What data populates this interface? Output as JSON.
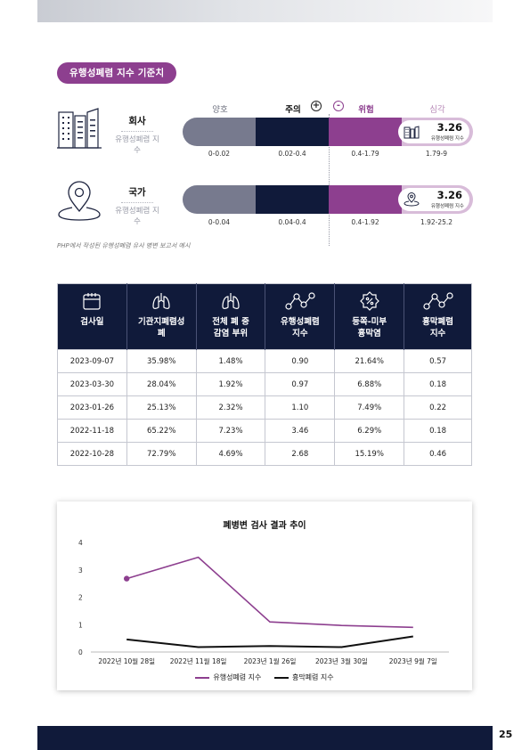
{
  "header": {
    "section_title": "유행성폐렴 지수 기준치"
  },
  "levels": {
    "good": "양호",
    "caution": "주의",
    "danger": "위험",
    "severe": "심각",
    "plus": "+",
    "minus": "-"
  },
  "rows": [
    {
      "name": "회사",
      "sub": "유행성폐렴 지수",
      "ranges": [
        "0-0.02",
        "0.02-0.4",
        "0.4-1.79",
        "1.79-9"
      ],
      "badge_value": "3.26",
      "badge_label": "유행성폐렴 지수",
      "badge_icon": "building-icon",
      "row_icon": "office-buildings-icon"
    },
    {
      "name": "국가",
      "sub": "유행성폐렴 지수",
      "ranges": [
        "0-0.04",
        "0.04-0.4",
        "0.4-1.92",
        "1.92-25.2"
      ],
      "badge_value": "3.26",
      "badge_label": "유행성폐렴 지수",
      "badge_icon": "location-pin-icon",
      "row_icon": "map-pin-icon"
    }
  ],
  "note": "PHP에서 작성된 유행성폐렴 유사 병변 보고서 예시",
  "table": {
    "headers": [
      {
        "line1": "검사일",
        "line2": "",
        "icon": "calendar-icon"
      },
      {
        "line1": "기관지폐렴성",
        "line2": "폐",
        "icon": "lungs-icon"
      },
      {
        "line1": "전체 폐 중",
        "line2": "감염 부위",
        "icon": "lungs-icon"
      },
      {
        "line1": "유행성폐렴",
        "line2": "지수",
        "icon": "line-graph-icon"
      },
      {
        "line1": "등쪽-미부",
        "line2": "흉막염",
        "icon": "percent-badge-icon"
      },
      {
        "line1": "흉막폐렴",
        "line2": "지수",
        "icon": "line-graph-icon"
      }
    ],
    "rows": [
      [
        "2023-09-07",
        "35.98%",
        "1.48%",
        "0.90",
        "21.64%",
        "0.57"
      ],
      [
        "2023-03-30",
        "28.04%",
        "1.92%",
        "0.97",
        "6.88%",
        "0.18"
      ],
      [
        "2023-01-26",
        "25.13%",
        "2.32%",
        "1.10",
        "7.49%",
        "0.22"
      ],
      [
        "2022-11-18",
        "65.22%",
        "7.23%",
        "3.46",
        "6.29%",
        "0.18"
      ],
      [
        "2022-10-28",
        "72.79%",
        "4.69%",
        "2.68",
        "15.19%",
        "0.46"
      ]
    ]
  },
  "chart_data": {
    "type": "line",
    "title": "폐병변 검사 결과 추이",
    "categories": [
      "2022년 10월 28일",
      "2022년 11월 18일",
      "2023년 1월 26일",
      "2023년 3월 30일",
      "2023년 9월 7일"
    ],
    "series": [
      {
        "name": "유행성폐렴 지수",
        "values": [
          2.68,
          3.46,
          1.1,
          0.97,
          0.9
        ],
        "color": "#8d3f8f"
      },
      {
        "name": "흉막폐렴 지수",
        "values": [
          0.46,
          0.18,
          0.22,
          0.18,
          0.57
        ],
        "color": "#111111"
      }
    ],
    "ylim": [
      0,
      4
    ],
    "yticks": [
      0,
      1,
      2,
      3,
      4
    ],
    "legend_position": "bottom",
    "grid": false
  },
  "colors": {
    "navy": "#101a3a",
    "purple": "#8d3f8f",
    "grey": "#777a8e",
    "light_purple": "#d8bcd9"
  },
  "footer": {
    "page_number": "25"
  }
}
